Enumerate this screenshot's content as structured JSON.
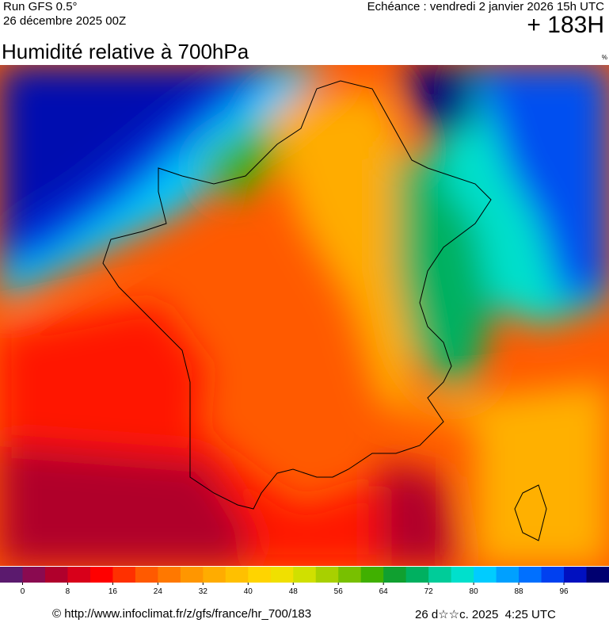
{
  "header": {
    "run": "Run GFS 0.5°",
    "date": "26 décembre 2025 00Z",
    "echeance": "Echéance : vendredi 2 janvier 2026 15h UTC",
    "hour": "+ 183H"
  },
  "map": {
    "title": "Humidité relative à 700hPa",
    "unit": "%"
  },
  "colorbar": {
    "lim": [
      -4,
      104
    ],
    "colors": [
      "#5b1a6e",
      "#8a0a50",
      "#b0002c",
      "#d8001a",
      "#ff0000",
      "#ff3000",
      "#ff5a00",
      "#ff7800",
      "#ff9600",
      "#ffac00",
      "#ffc000",
      "#ffd400",
      "#f0e000",
      "#d0e000",
      "#a8d000",
      "#78c000",
      "#40b000",
      "#10a030",
      "#00b060",
      "#00cc99",
      "#00e0cc",
      "#00ccff",
      "#00a0ff",
      "#0070ff",
      "#0040f0",
      "#0010c0",
      "#000070"
    ],
    "ticks": [
      0,
      8,
      16,
      24,
      32,
      40,
      48,
      56,
      64,
      72,
      80,
      88,
      96
    ]
  },
  "footer": {
    "url": "© http://www.infoclimat.fr/z/gfs/france/hr_700/183",
    "stamp": "26 d☆☆c. 2025  4:25 UTC"
  }
}
